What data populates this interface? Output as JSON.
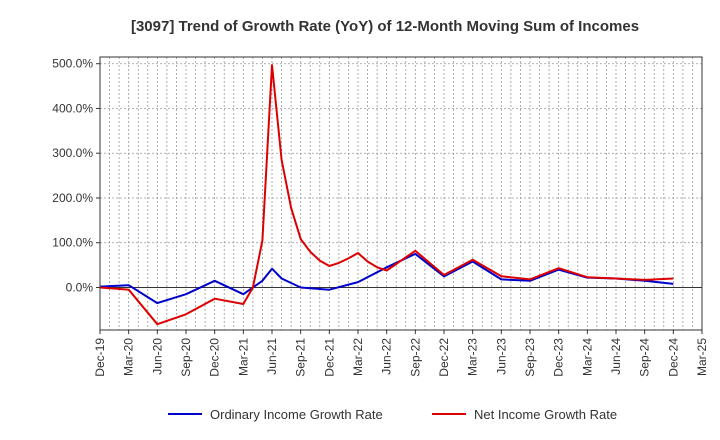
{
  "chart_data": {
    "type": "line",
    "title": "[3097]  Trend of Growth Rate (YoY) of 12-Month Moving Sum of Incomes",
    "xlabel": "",
    "ylabel": "",
    "ylim": [
      -95,
      515
    ],
    "y_ticks": [
      0,
      100,
      200,
      300,
      400,
      500
    ],
    "y_tick_labels": [
      "0.0%",
      "100.0%",
      "200.0%",
      "300.0%",
      "400.0%",
      "500.0%"
    ],
    "x_tick_labels": [
      "Dec-19",
      "Mar-20",
      "Jun-20",
      "Sep-20",
      "Dec-20",
      "Mar-21",
      "Jun-21",
      "Sep-21",
      "Dec-21",
      "Mar-22",
      "Jun-22",
      "Sep-22",
      "Dec-22",
      "Mar-23",
      "Jun-23",
      "Sep-23",
      "Dec-23",
      "Mar-24",
      "Jun-24",
      "Sep-24",
      "Dec-24",
      "Mar-25"
    ],
    "grid": true,
    "legend": "bottom",
    "series": [
      {
        "name": "Ordinary Income Growth Rate",
        "color": "#0000cc",
        "points": [
          [
            0,
            2
          ],
          [
            3,
            5
          ],
          [
            6,
            -35
          ],
          [
            9,
            -15
          ],
          [
            12,
            15
          ],
          [
            15,
            -15
          ],
          [
            17,
            15
          ],
          [
            18,
            42
          ],
          [
            19,
            20
          ],
          [
            21,
            0
          ],
          [
            24,
            -5
          ],
          [
            27,
            12
          ],
          [
            30,
            45
          ],
          [
            33,
            75
          ],
          [
            36,
            25
          ],
          [
            39,
            58
          ],
          [
            42,
            18
          ],
          [
            45,
            15
          ],
          [
            48,
            40
          ],
          [
            51,
            22
          ],
          [
            54,
            20
          ],
          [
            57,
            15
          ],
          [
            60,
            8
          ]
        ]
      },
      {
        "name": "Net Income Growth Rate",
        "color": "#dd0000",
        "points": [
          [
            0,
            0
          ],
          [
            3,
            -5
          ],
          [
            6,
            -82
          ],
          [
            9,
            -60
          ],
          [
            12,
            -25
          ],
          [
            15,
            -37
          ],
          [
            16,
            0
          ],
          [
            17,
            105
          ],
          [
            18,
            497
          ],
          [
            19,
            285
          ],
          [
            20,
            178
          ],
          [
            21,
            108
          ],
          [
            22,
            80
          ],
          [
            23,
            60
          ],
          [
            24,
            48
          ],
          [
            25,
            55
          ],
          [
            26,
            65
          ],
          [
            27,
            77
          ],
          [
            28,
            58
          ],
          [
            29,
            45
          ],
          [
            30,
            38
          ],
          [
            33,
            82
          ],
          [
            36,
            28
          ],
          [
            39,
            62
          ],
          [
            42,
            25
          ],
          [
            45,
            18
          ],
          [
            48,
            43
          ],
          [
            51,
            23
          ],
          [
            54,
            20
          ],
          [
            57,
            17
          ],
          [
            60,
            20
          ]
        ]
      }
    ]
  }
}
